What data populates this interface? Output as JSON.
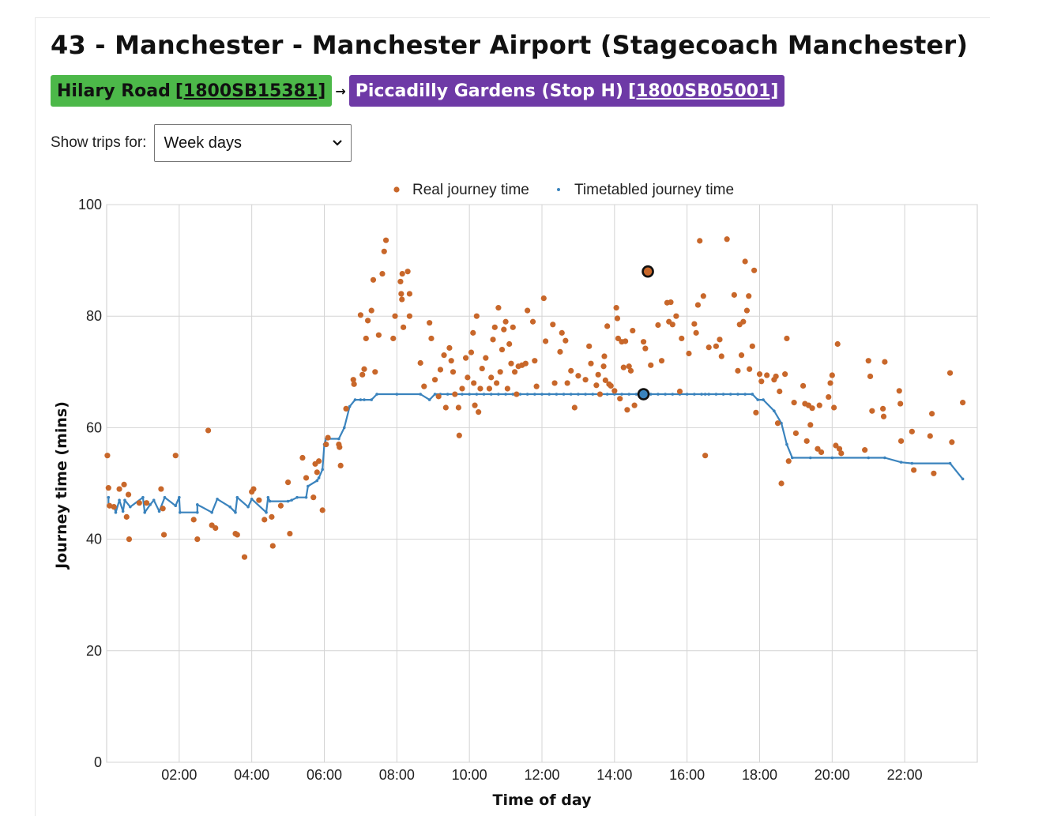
{
  "page": {
    "title": "43 - Manchester - Manchester Airport (Stagecoach Manchester)",
    "from_stop": {
      "name": "Hilary Road",
      "code": "[1800SB15381]",
      "color": "#4cb849"
    },
    "arrow": "→",
    "to_stop": {
      "name": "Piccadilly Gardens (Stop H)",
      "code": "[1800SB05001]",
      "color": "#6e3aa6"
    },
    "filter": {
      "label": "Show trips for:",
      "selected": "Week days"
    }
  },
  "chart_data": {
    "type": "scatter",
    "xlabel": "Time of day",
    "ylabel": "Journey time (mins)",
    "xlim": [
      0,
      24
    ],
    "ylim": [
      0,
      100
    ],
    "x_unit": "hours",
    "xticks": [
      2,
      4,
      6,
      8,
      10,
      12,
      14,
      16,
      18,
      20,
      22
    ],
    "xtick_labels": [
      "02:00",
      "04:00",
      "06:00",
      "08:00",
      "10:00",
      "12:00",
      "14:00",
      "16:00",
      "18:00",
      "20:00",
      "22:00"
    ],
    "yticks": [
      0,
      20,
      40,
      60,
      80,
      100
    ],
    "grid": true,
    "legend_position": "top",
    "series": [
      {
        "name": "Real journey time",
        "kind": "scatter",
        "color": "#c8672a",
        "points": [
          [
            0.02,
            55
          ],
          [
            0.05,
            49.2
          ],
          [
            0.08,
            46
          ],
          [
            0.2,
            45.8
          ],
          [
            0.35,
            49
          ],
          [
            0.48,
            49.8
          ],
          [
            0.55,
            44
          ],
          [
            0.6,
            48
          ],
          [
            0.62,
            40
          ],
          [
            0.9,
            46.5
          ],
          [
            1.1,
            46.5
          ],
          [
            1.5,
            49
          ],
          [
            1.55,
            45.5
          ],
          [
            1.58,
            40.8
          ],
          [
            1.9,
            55
          ],
          [
            2.4,
            43.5
          ],
          [
            2.5,
            40
          ],
          [
            2.8,
            59.5
          ],
          [
            2.9,
            42.5
          ],
          [
            3.0,
            42
          ],
          [
            3.55,
            41
          ],
          [
            3.6,
            40.8
          ],
          [
            3.8,
            36.8
          ],
          [
            4.0,
            48.5
          ],
          [
            4.05,
            49
          ],
          [
            4.2,
            47
          ],
          [
            4.35,
            43.5
          ],
          [
            4.55,
            44
          ],
          [
            4.58,
            38.8
          ],
          [
            4.8,
            46
          ],
          [
            5.0,
            50.2
          ],
          [
            5.05,
            41
          ],
          [
            5.4,
            54.6
          ],
          [
            5.5,
            51
          ],
          [
            5.7,
            47.5
          ],
          [
            5.75,
            53.5
          ],
          [
            5.8,
            52
          ],
          [
            5.85,
            54
          ],
          [
            5.95,
            45.2
          ],
          [
            6.05,
            57
          ],
          [
            6.1,
            58.2
          ],
          [
            6.4,
            57
          ],
          [
            6.42,
            56.5
          ],
          [
            6.45,
            53.2
          ],
          [
            6.6,
            63.4
          ],
          [
            6.8,
            68.6
          ],
          [
            6.82,
            67.8
          ],
          [
            7.0,
            80.2
          ],
          [
            7.05,
            69.5
          ],
          [
            7.1,
            70.5
          ],
          [
            7.15,
            76
          ],
          [
            7.2,
            79.2
          ],
          [
            7.3,
            81
          ],
          [
            7.35,
            86.5
          ],
          [
            7.4,
            70
          ],
          [
            7.5,
            76.6
          ],
          [
            7.6,
            87.6
          ],
          [
            7.65,
            91.6
          ],
          [
            7.7,
            93.6
          ],
          [
            7.9,
            76
          ],
          [
            7.95,
            80
          ],
          [
            8.1,
            86.2
          ],
          [
            8.12,
            84
          ],
          [
            8.14,
            83
          ],
          [
            8.15,
            87.6
          ],
          [
            8.18,
            78
          ],
          [
            8.3,
            88
          ],
          [
            8.35,
            80
          ],
          [
            8.35,
            84
          ],
          [
            8.65,
            71.6
          ],
          [
            8.75,
            67.4
          ],
          [
            8.9,
            78.8
          ],
          [
            8.95,
            76
          ],
          [
            9.05,
            68.6
          ],
          [
            9.15,
            65.6
          ],
          [
            9.2,
            70.4
          ],
          [
            9.3,
            73
          ],
          [
            9.35,
            63.6
          ],
          [
            9.45,
            74.3
          ],
          [
            9.5,
            72
          ],
          [
            9.55,
            70
          ],
          [
            9.6,
            66
          ],
          [
            9.7,
            63.6
          ],
          [
            9.72,
            58.6
          ],
          [
            9.8,
            67
          ],
          [
            9.9,
            72.5
          ],
          [
            9.95,
            69
          ],
          [
            10.05,
            73.5
          ],
          [
            10.1,
            77
          ],
          [
            10.12,
            68
          ],
          [
            10.15,
            64
          ],
          [
            10.2,
            80
          ],
          [
            10.25,
            62.8
          ],
          [
            10.3,
            67
          ],
          [
            10.35,
            70.6
          ],
          [
            10.45,
            72.5
          ],
          [
            10.55,
            67
          ],
          [
            10.6,
            69
          ],
          [
            10.65,
            75.8
          ],
          [
            10.7,
            78
          ],
          [
            10.75,
            68
          ],
          [
            10.8,
            81.5
          ],
          [
            10.85,
            70
          ],
          [
            10.9,
            74
          ],
          [
            10.95,
            77.6
          ],
          [
            11.0,
            79
          ],
          [
            11.05,
            67
          ],
          [
            11.1,
            75
          ],
          [
            11.15,
            71.5
          ],
          [
            11.2,
            78
          ],
          [
            11.25,
            70
          ],
          [
            11.3,
            66
          ],
          [
            11.35,
            71
          ],
          [
            11.45,
            71.2
          ],
          [
            11.55,
            71.5
          ],
          [
            11.6,
            81
          ],
          [
            11.75,
            79
          ],
          [
            11.8,
            72
          ],
          [
            11.85,
            67.4
          ],
          [
            12.05,
            83.2
          ],
          [
            12.1,
            75.5
          ],
          [
            12.3,
            78.5
          ],
          [
            12.35,
            68
          ],
          [
            12.5,
            73.6
          ],
          [
            12.55,
            77
          ],
          [
            12.65,
            75.6
          ],
          [
            12.7,
            68
          ],
          [
            12.8,
            70.2
          ],
          [
            12.9,
            63.6
          ],
          [
            13.0,
            69.3
          ],
          [
            13.2,
            68.6
          ],
          [
            13.3,
            74.6
          ],
          [
            13.35,
            71.5
          ],
          [
            13.5,
            67.6
          ],
          [
            13.55,
            69.5
          ],
          [
            13.6,
            66
          ],
          [
            13.7,
            71
          ],
          [
            13.72,
            72.8
          ],
          [
            13.75,
            68.5
          ],
          [
            13.8,
            78.2
          ],
          [
            13.85,
            67.8
          ],
          [
            13.9,
            67.5
          ],
          [
            14.0,
            66.6
          ],
          [
            14.05,
            81.5
          ],
          [
            14.08,
            79.6
          ],
          [
            14.1,
            76
          ],
          [
            14.15,
            65.2
          ],
          [
            14.2,
            75.4
          ],
          [
            14.25,
            70.8
          ],
          [
            14.3,
            75.5
          ],
          [
            14.35,
            63.2
          ],
          [
            14.4,
            71
          ],
          [
            14.45,
            70.2
          ],
          [
            14.5,
            77.4
          ],
          [
            14.55,
            64
          ],
          [
            14.8,
            75.4
          ],
          [
            14.85,
            74.2
          ],
          [
            15.0,
            71.2
          ],
          [
            15.2,
            78.4
          ],
          [
            15.3,
            72
          ],
          [
            15.45,
            82.4
          ],
          [
            15.5,
            79
          ],
          [
            15.55,
            82.5
          ],
          [
            15.6,
            78.5
          ],
          [
            15.7,
            80
          ],
          [
            15.8,
            66.5
          ],
          [
            15.85,
            76
          ],
          [
            16.05,
            73.3
          ],
          [
            16.2,
            78.6
          ],
          [
            16.25,
            77
          ],
          [
            16.3,
            82
          ],
          [
            16.35,
            93.5
          ],
          [
            16.45,
            83.6
          ],
          [
            16.5,
            55
          ],
          [
            16.6,
            74.4
          ],
          [
            16.8,
            74.6
          ],
          [
            16.9,
            75.8
          ],
          [
            16.95,
            72.8
          ],
          [
            17.1,
            93.8
          ],
          [
            17.3,
            83.8
          ],
          [
            17.4,
            70.2
          ],
          [
            17.45,
            78.5
          ],
          [
            17.5,
            73
          ],
          [
            17.55,
            79
          ],
          [
            17.6,
            89.8
          ],
          [
            17.65,
            81
          ],
          [
            17.7,
            83.6
          ],
          [
            17.72,
            70.5
          ],
          [
            17.8,
            74.6
          ],
          [
            17.85,
            88.2
          ],
          [
            17.9,
            62.7
          ],
          [
            18.0,
            69.6
          ],
          [
            18.05,
            68.3
          ],
          [
            18.2,
            69.4
          ],
          [
            18.4,
            68.6
          ],
          [
            18.45,
            69.2
          ],
          [
            18.5,
            60.8
          ],
          [
            18.55,
            66.5
          ],
          [
            18.6,
            50
          ],
          [
            18.7,
            69.6
          ],
          [
            18.75,
            76
          ],
          [
            18.8,
            54
          ],
          [
            18.95,
            64.5
          ],
          [
            19.0,
            59
          ],
          [
            19.2,
            67.5
          ],
          [
            19.25,
            64.3
          ],
          [
            19.3,
            57.6
          ],
          [
            19.35,
            64
          ],
          [
            19.4,
            60.5
          ],
          [
            19.45,
            63.5
          ],
          [
            19.6,
            56.2
          ],
          [
            19.65,
            64
          ],
          [
            19.7,
            55.6
          ],
          [
            19.9,
            65.5
          ],
          [
            19.95,
            68
          ],
          [
            20.0,
            69.4
          ],
          [
            20.05,
            63.6
          ],
          [
            20.1,
            56.8
          ],
          [
            20.15,
            75
          ],
          [
            20.2,
            56.2
          ],
          [
            20.25,
            55.4
          ],
          [
            20.9,
            56
          ],
          [
            21.0,
            72
          ],
          [
            21.05,
            69.2
          ],
          [
            21.1,
            63
          ],
          [
            21.4,
            63.4
          ],
          [
            21.42,
            62
          ],
          [
            21.45,
            71.8
          ],
          [
            21.85,
            66.6
          ],
          [
            21.88,
            64.3
          ],
          [
            21.9,
            57.6
          ],
          [
            22.2,
            59.3
          ],
          [
            22.25,
            52.4
          ],
          [
            22.7,
            58.5
          ],
          [
            22.75,
            62.5
          ],
          [
            22.8,
            51.8
          ],
          [
            23.25,
            69.8
          ],
          [
            23.3,
            57.4
          ],
          [
            23.6,
            64.5
          ]
        ]
      },
      {
        "name": "Timetabled journey time",
        "kind": "line",
        "color": "#3a83bd",
        "points": [
          [
            0.05,
            47.5
          ],
          [
            0.05,
            46
          ],
          [
            0.2,
            46
          ],
          [
            0.25,
            44.8
          ],
          [
            0.35,
            47
          ],
          [
            0.45,
            45
          ],
          [
            0.5,
            47
          ],
          [
            0.65,
            45.8
          ],
          [
            1.0,
            47.5
          ],
          [
            1.05,
            44.8
          ],
          [
            1.2,
            46.2
          ],
          [
            1.3,
            47
          ],
          [
            1.45,
            45
          ],
          [
            1.6,
            47.5
          ],
          [
            1.9,
            46
          ],
          [
            2.0,
            47.5
          ],
          [
            2.02,
            44.8
          ],
          [
            2.5,
            44.8
          ],
          [
            2.5,
            46.2
          ],
          [
            2.9,
            44.8
          ],
          [
            3.05,
            47.2
          ],
          [
            3.4,
            45.8
          ],
          [
            3.55,
            44.8
          ],
          [
            3.6,
            47.5
          ],
          [
            3.9,
            45.8
          ],
          [
            4.0,
            47.2
          ],
          [
            4.4,
            44.8
          ],
          [
            4.45,
            47.5
          ],
          [
            4.5,
            46.8
          ],
          [
            5.0,
            46.8
          ],
          [
            5.1,
            47
          ],
          [
            5.25,
            47.5
          ],
          [
            5.5,
            47.5
          ],
          [
            5.55,
            49.5
          ],
          [
            5.8,
            50.5
          ],
          [
            5.85,
            51
          ],
          [
            5.95,
            52.5
          ],
          [
            6.0,
            57
          ],
          [
            6.05,
            58
          ],
          [
            6.4,
            58
          ],
          [
            6.55,
            60
          ],
          [
            6.7,
            63.8
          ],
          [
            6.85,
            65
          ],
          [
            7.0,
            65
          ],
          [
            7.1,
            65
          ],
          [
            7.3,
            65
          ],
          [
            7.45,
            66
          ],
          [
            8.0,
            66
          ],
          [
            8.65,
            66
          ],
          [
            8.9,
            65
          ],
          [
            9.05,
            66
          ],
          [
            16.5,
            66
          ],
          [
            17.8,
            66
          ],
          [
            17.95,
            65
          ],
          [
            18.1,
            65
          ],
          [
            18.4,
            63
          ],
          [
            18.6,
            60.8
          ],
          [
            18.75,
            57
          ],
          [
            18.9,
            54.6
          ],
          [
            19.4,
            54.6
          ],
          [
            20.0,
            54.6
          ],
          [
            21.0,
            54.6
          ],
          [
            21.45,
            54.6
          ],
          [
            21.9,
            53.8
          ],
          [
            22.2,
            53.6
          ],
          [
            23.25,
            53.6
          ],
          [
            23.6,
            50.8
          ]
        ]
      }
    ],
    "highlighted": [
      {
        "series": "Real journey time",
        "point": [
          14.92,
          88
        ]
      },
      {
        "series": "Timetabled journey time",
        "point": [
          14.8,
          66
        ]
      }
    ]
  }
}
